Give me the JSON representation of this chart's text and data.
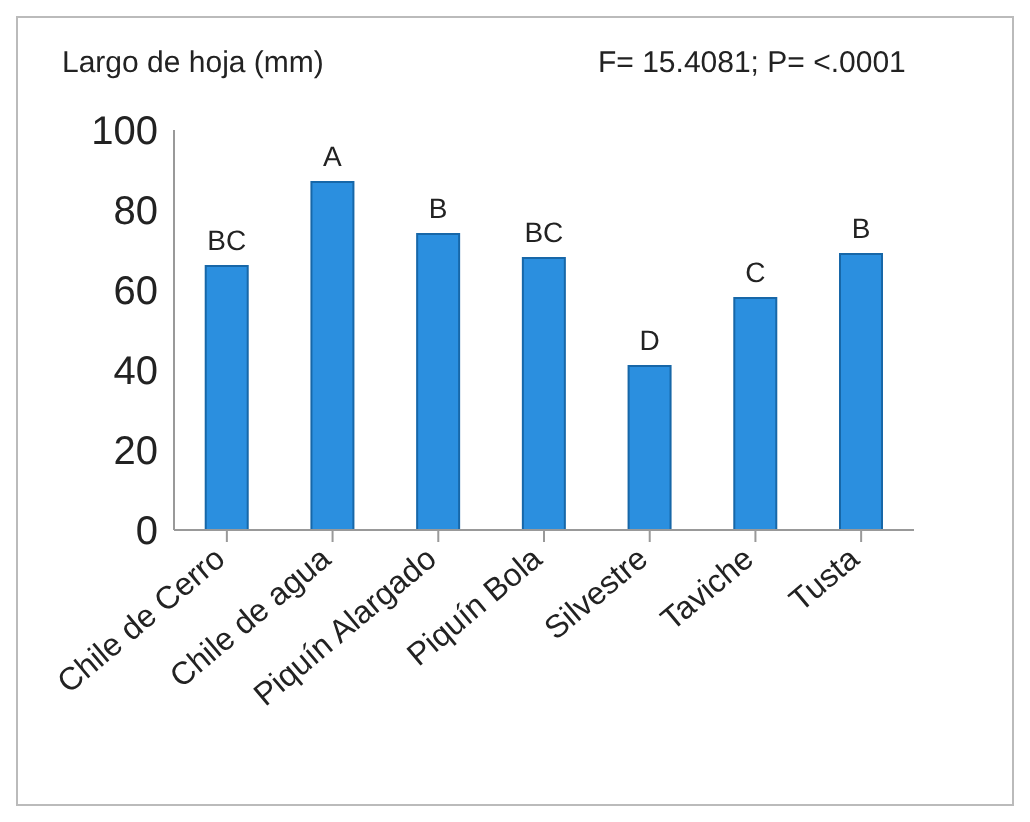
{
  "chart_data": {
    "type": "bar",
    "title": "Largo de hoja (mm)",
    "categories": [
      "Chile de Cerro",
      "Chile de agua",
      "Piquín Alargado",
      "Piquín Bola",
      "Silvestre",
      "Taviche",
      "Tusta"
    ],
    "values": [
      66,
      87,
      74,
      68,
      41,
      58,
      69
    ],
    "color": "#2b8fdf",
    "ylim": [
      0,
      100
    ],
    "yticks": [
      0,
      20,
      40,
      60,
      80,
      100
    ],
    "grid": false,
    "annotations": [
      "F= 15.4081; P= <.0001",
      {
        "text": "BC",
        "x": "Chile de Cerro",
        "y": 66
      },
      {
        "text": "A",
        "x": "Chile de agua",
        "y": 87
      },
      {
        "text": "B",
        "x": "Piquín Alargado",
        "y": 74
      },
      {
        "text": "BC",
        "x": "Piquín Bola",
        "y": 68
      },
      {
        "text": "D",
        "x": "Silvestre",
        "y": 41
      },
      {
        "text": "C",
        "x": "Taviche",
        "y": 58
      },
      {
        "text": "B",
        "x": "Tusta",
        "y": 69
      }
    ]
  }
}
